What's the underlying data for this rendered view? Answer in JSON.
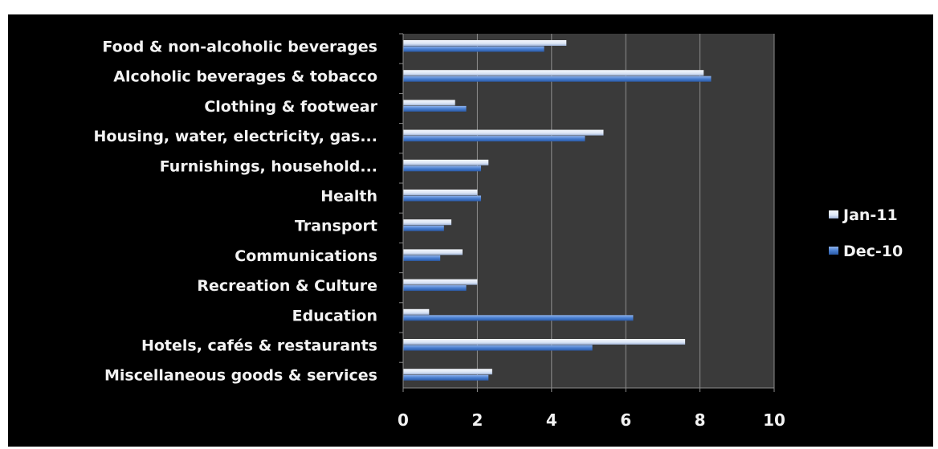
{
  "chart_data": {
    "type": "bar",
    "orientation": "horizontal",
    "categories": [
      "Food & non-alcoholic beverages",
      "Alcoholic beverages & tobacco",
      "Clothing & footwear",
      "Housing, water,  electricity, gas...",
      "Furnishings, household...",
      "Health",
      "Transport",
      "Communications",
      "Recreation & Culture",
      "Education",
      "Hotels, cafés & restaurants",
      "Miscellaneous goods & services"
    ],
    "series": [
      {
        "name": "Jan-11",
        "color": "#dbe5f5",
        "values": [
          4.4,
          8.1,
          1.4,
          5.4,
          2.3,
          2.0,
          1.3,
          1.6,
          2.0,
          0.7,
          7.6,
          2.4
        ]
      },
      {
        "name": "Dec-10",
        "color": "#4a7fd0",
        "values": [
          3.8,
          8.3,
          1.7,
          4.9,
          2.1,
          2.1,
          1.1,
          1.0,
          1.7,
          6.2,
          5.1,
          2.3
        ]
      }
    ],
    "xticks": [
      "0",
      "2",
      "4",
      "6",
      "8",
      "10"
    ],
    "xlim": [
      0,
      10
    ],
    "grid": true,
    "legend_position": "right",
    "title": "",
    "xlabel": "",
    "ylabel": "",
    "colors": {
      "background": "#000000",
      "plot_area": "#3a3a3a",
      "gridline": "#8c8c8c",
      "text": "#f2f2f2"
    }
  }
}
